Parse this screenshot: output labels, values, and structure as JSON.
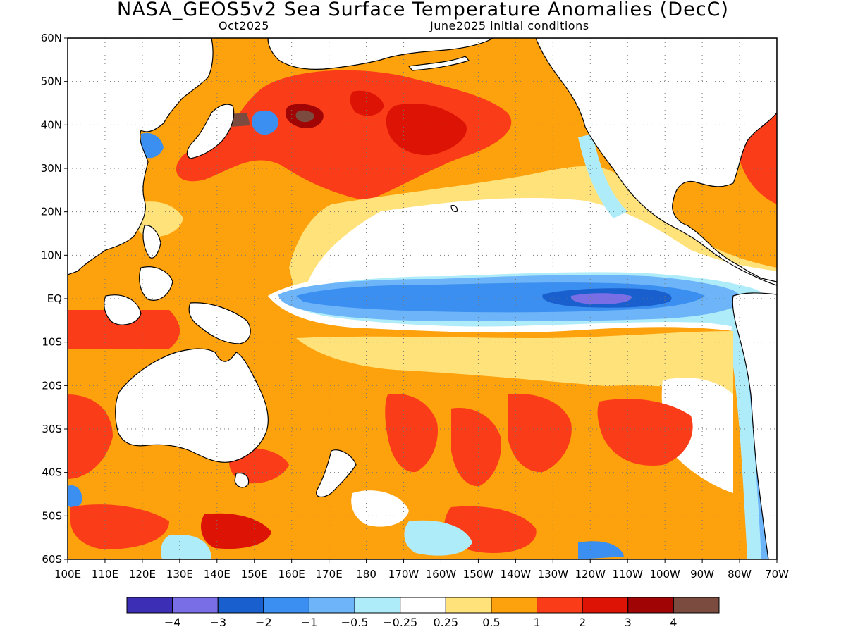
{
  "header": {
    "title": "NASA_GEOS5v2 Sea Surface Temperature Anomalies (DecC)",
    "valid_month": "Oct2025",
    "init": "June2025 initial conditions"
  },
  "map": {
    "lat_labels": [
      "60N",
      "50N",
      "40N",
      "30N",
      "20N",
      "10N",
      "EQ",
      "10S",
      "20S",
      "30S",
      "40S",
      "50S",
      "60S"
    ],
    "lon_labels": [
      "100E",
      "110E",
      "120E",
      "130E",
      "140E",
      "150E",
      "160E",
      "170E",
      "180",
      "170W",
      "160W",
      "150W",
      "140W",
      "130W",
      "120W",
      "110W",
      "100W",
      "90W",
      "80W",
      "70W"
    ],
    "grid": "dotted",
    "land_color": "#ffffff",
    "coast_color": "#000000"
  },
  "colorbar": {
    "colors": [
      "#3c2fb6",
      "#7a6ee6",
      "#1a5fce",
      "#3a8ff0",
      "#6db4f8",
      "#afecfa",
      "#ffffff",
      "#ffe27a",
      "#fda10d",
      "#fa3d18",
      "#dd1305",
      "#a10404",
      "#7a4b3e"
    ],
    "tick_labels": [
      "-4",
      "-3",
      "-2",
      "-1",
      "-0.5",
      "-0.25",
      "0.25",
      "0.5",
      "1",
      "2",
      "3",
      "4"
    ]
  }
}
